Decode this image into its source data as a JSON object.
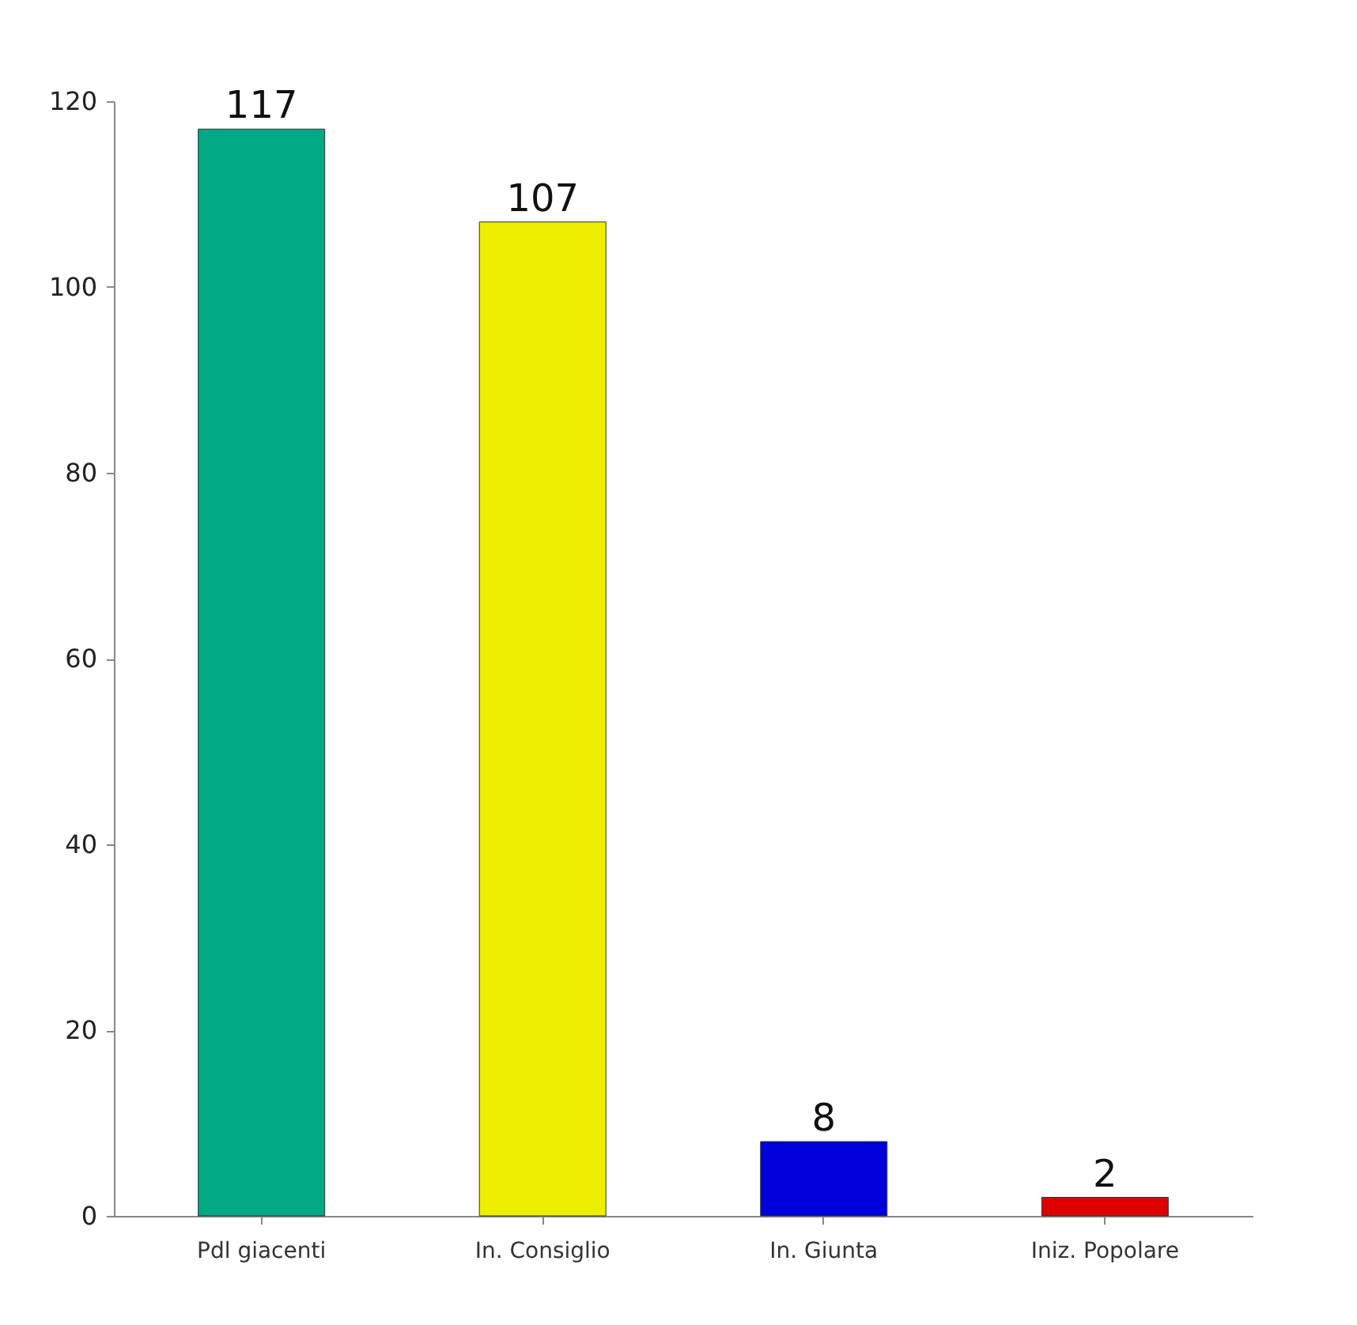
{
  "chart_data": {
    "type": "bar",
    "categories": [
      "Pdl giacenti",
      "In. Consiglio",
      "In. Giunta",
      "Iniz. Popolare"
    ],
    "values": [
      117,
      107,
      8,
      2
    ],
    "colors": [
      "#00a884",
      "#eeee00",
      "#0000dd",
      "#dd0000"
    ],
    "ylim": [
      0,
      120
    ],
    "yticks": [
      0,
      20,
      40,
      60,
      80,
      100,
      120
    ],
    "grid": false,
    "data_labels": true
  }
}
